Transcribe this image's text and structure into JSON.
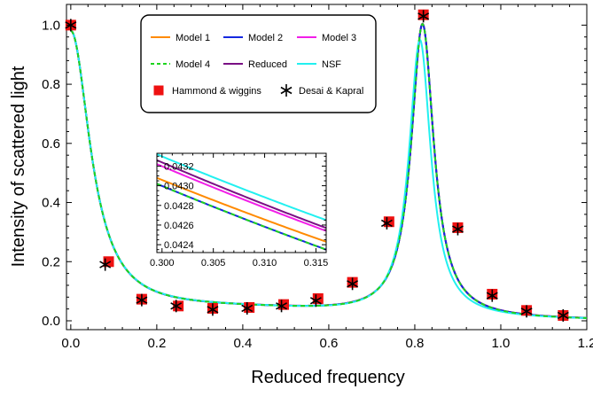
{
  "chart_data": [
    {
      "type": "line",
      "title": "",
      "xlabel": "Reduced frequency",
      "ylabel": "Intensity of scattered light",
      "xlim": [
        -0.01,
        1.2
      ],
      "ylim": [
        -0.03,
        1.07
      ],
      "xticks": [
        0.0,
        0.2,
        0.4,
        0.6,
        0.8,
        1.0,
        1.2
      ],
      "xtick_labels": [
        "0.0",
        "0.2",
        "0.4",
        "0.6",
        "0.8",
        "1.0",
        "1.2"
      ],
      "yticks": [
        0.0,
        0.2,
        0.4,
        0.6,
        0.8,
        1.0
      ],
      "ytick_labels": [
        "0.0",
        "0.2",
        "0.4",
        "0.6",
        "0.8",
        "1.0"
      ],
      "grid": false,
      "legend_position": "top-center",
      "series": [
        {
          "name": "Model 1",
          "color": "#ff8a00",
          "style": "solid",
          "peak_x": 0.818,
          "peak_y": 1.03,
          "wing_offset": 0.0003
        },
        {
          "name": "Model 2",
          "color": "#1528e0",
          "style": "solid",
          "peak_x": 0.818,
          "peak_y": 1.03,
          "wing_offset": 0.0
        },
        {
          "name": "Model 3",
          "color": "#f21ee8",
          "style": "solid",
          "peak_x": 0.818,
          "peak_y": 1.03,
          "wing_offset": 0.0005
        },
        {
          "name": "Model 4",
          "color": "#1ed41e",
          "style": "dashed",
          "peak_x": 0.818,
          "peak_y": 1.03,
          "wing_offset": 0.0
        },
        {
          "name": "Reduced",
          "color": "#7a0f84",
          "style": "solid",
          "peak_x": 0.818,
          "peak_y": 1.03,
          "wing_offset": 0.0007
        },
        {
          "name": "NSF",
          "color": "#22f0f0",
          "style": "solid",
          "peak_x": 0.812,
          "peak_y": 0.975,
          "wing_offset": 0.0011
        }
      ],
      "markers": [
        {
          "name": "Hammond & wiggins",
          "symbol": "square",
          "color": "#ee1111",
          "x": [
            0.0,
            0.088,
            0.165,
            0.25,
            0.33,
            0.415,
            0.495,
            0.575,
            0.655,
            0.74,
            0.82,
            0.9,
            0.98,
            1.06,
            1.145
          ],
          "y": [
            1.0,
            0.2,
            0.073,
            0.05,
            0.042,
            0.045,
            0.055,
            0.075,
            0.13,
            0.335,
            1.035,
            0.315,
            0.09,
            0.035,
            0.018
          ]
        },
        {
          "name": "Desai & Kapral",
          "symbol": "asterisk",
          "color": "#000000",
          "x": [
            0.0,
            0.08,
            0.165,
            0.245,
            0.33,
            0.41,
            0.49,
            0.57,
            0.655,
            0.735,
            0.82,
            0.9,
            0.98,
            1.06,
            1.145
          ],
          "y": [
            1.0,
            0.19,
            0.07,
            0.05,
            0.038,
            0.042,
            0.05,
            0.068,
            0.125,
            0.33,
            1.03,
            0.31,
            0.085,
            0.032,
            0.018
          ]
        }
      ]
    },
    {
      "type": "line",
      "title": "",
      "xlabel": "",
      "ylabel": "",
      "xlim": [
        0.2995,
        0.316
      ],
      "ylim": [
        0.04232,
        0.04333
      ],
      "xticks": [
        0.3,
        0.305,
        0.31,
        0.315
      ],
      "xtick_labels": [
        "0.300",
        "0.305",
        "0.310",
        "0.315"
      ],
      "yticks": [
        0.0424,
        0.0426,
        0.0428,
        0.043,
        0.0432
      ],
      "ytick_labels": [
        "0.0424",
        "0.0426",
        "0.0428",
        "0.0430",
        "0.0432"
      ],
      "series": [
        {
          "name": "Model 1",
          "color": "#ff8a00",
          "style": "solid",
          "x": [
            0.2995,
            0.316
          ],
          "y": [
            0.04308,
            0.04243
          ]
        },
        {
          "name": "Model 3",
          "color": "#f21ee8",
          "style": "solid",
          "x": [
            0.2995,
            0.316
          ],
          "y": [
            0.04322,
            0.04254
          ]
        },
        {
          "name": "Reduced",
          "color": "#7a0f84",
          "style": "solid",
          "x": [
            0.2995,
            0.316
          ],
          "y": [
            0.04326,
            0.04257
          ]
        },
        {
          "name": "NSF",
          "color": "#22f0f0",
          "style": "solid",
          "x": [
            0.2995,
            0.316
          ],
          "y": [
            0.04332,
            0.04265
          ]
        },
        {
          "name": "Model 2",
          "color": "#1528e0",
          "style": "solid",
          "x": [
            0.2995,
            0.316
          ],
          "y": [
            0.04302,
            0.04235
          ]
        },
        {
          "name": "Model 4",
          "color": "#1ed41e",
          "style": "dashed",
          "x": [
            0.2995,
            0.316
          ],
          "y": [
            0.04302,
            0.04235
          ]
        }
      ]
    }
  ]
}
